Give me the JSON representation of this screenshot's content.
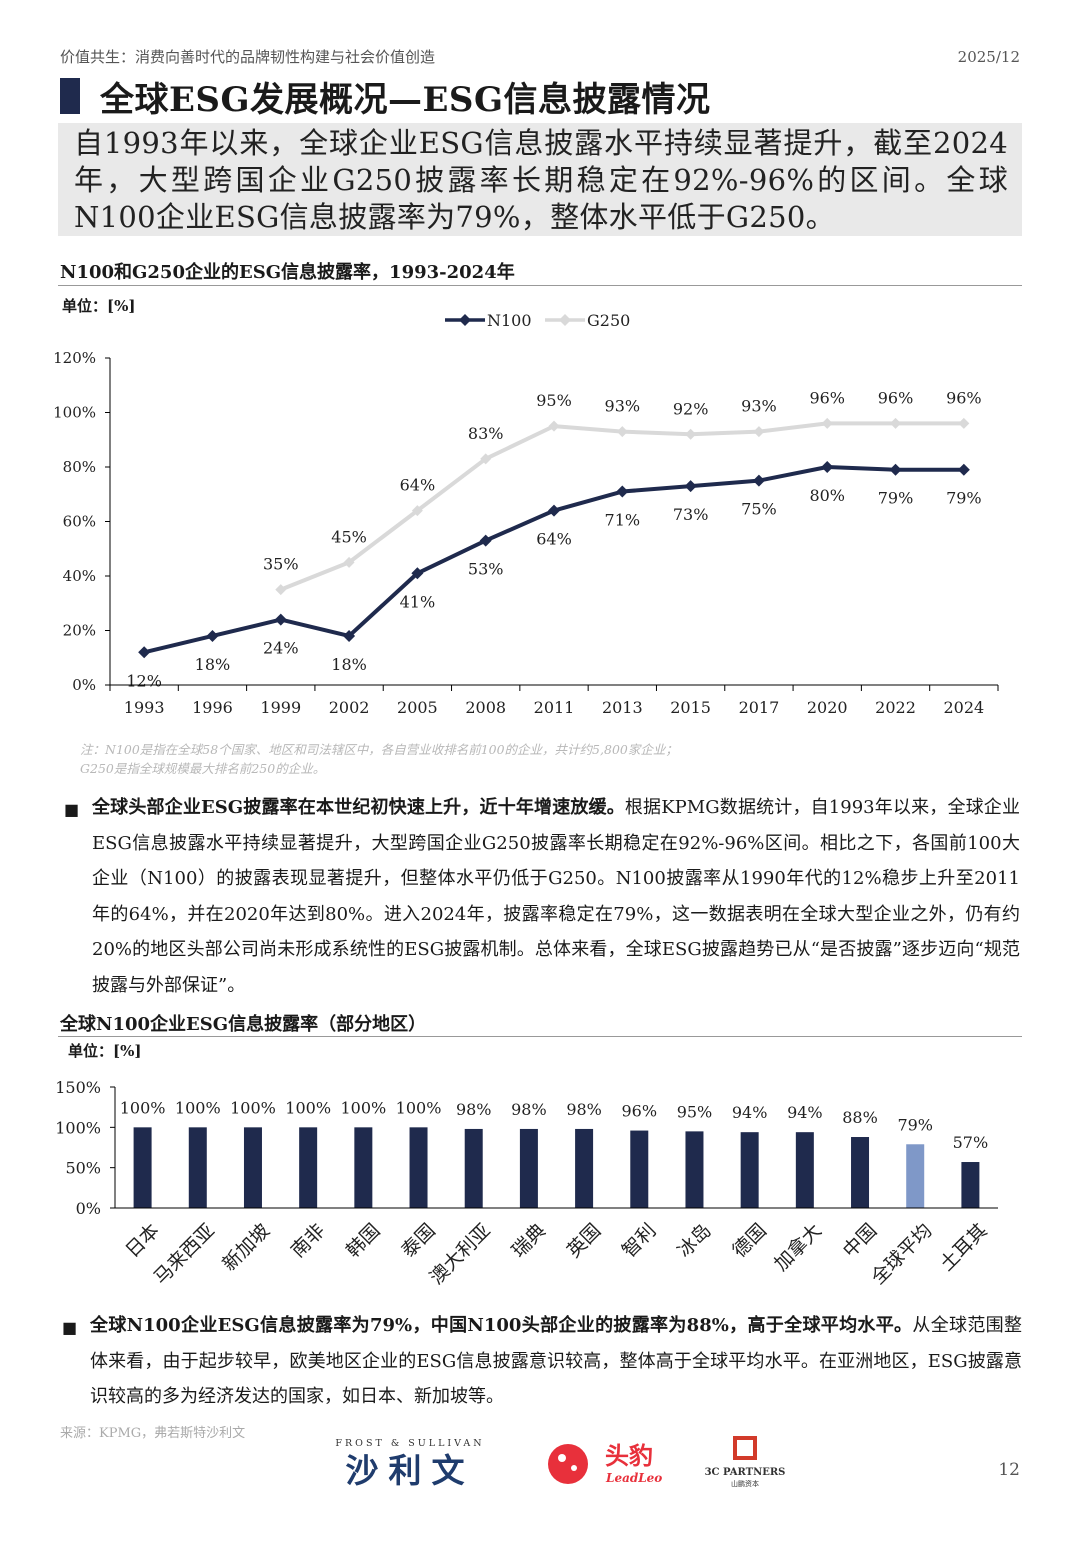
{
  "header": {
    "report_title": "价值共生：消费向善时代的品牌韧性构建与社会价值创造",
    "date": "2025/12"
  },
  "section_title": "全球ESG发展概况—ESG信息披露情况",
  "summary": "自1993年以来，全球企业ESG信息披露水平持续显著提升，截至2024年，大型跨国企业G250披露率长期稳定在92%-96%的区间。全球N100企业ESG信息披露率为79%，整体水平低于G250。",
  "chart1": {
    "title": "N100和G250企业的ESG信息披露率，1993-2024年",
    "unit": "单位：[%]"
  },
  "chart2": {
    "title": "全球N100企业ESG信息披露率（部分地区）",
    "unit": "单位：[%]"
  },
  "note": {
    "line1": "注：N100是指在全球58个国家、地区和司法辖区中，各自营业收排名前100的企业，共计约5,800家企业；",
    "line2": "G250是指全球规模最大排名前250的企业。"
  },
  "paragraph1": {
    "bold": "全球头部企业ESG披露率在本世纪初快速上升，近十年增速放缓。",
    "text": "根据KPMG数据统计，自1993年以来，全球企业ESG信息披露水平持续显著提升，大型跨国企业G250披露率长期稳定在92%-96%区间。相比之下，各国前100大企业（N100）的披露表现显著提升，但整体水平仍低于G250。N100披露率从1990年代的12%稳步上升至2011年的64%，并在2020年达到80%。进入2024年，披露率稳定在79%，这一数据表明在全球大型企业之外，仍有约20%的地区头部公司尚未形成系统性的ESG披露机制。总体来看，全球ESG披露趋势已从“是否披露”逐步迈向“规范披露与外部保证”。"
  },
  "paragraph2": {
    "bold": "全球N100企业ESG信息披露率为79%，中国N100头部企业的披露率为88%，高于全球平均水平。",
    "text": "从全球范围整体来看，由于起步较早，欧美地区企业的ESG信息披露意识较高，整体高于全球平均水平。在亚洲地区，ESG披露意识较高的多为经济发达的国家，如日本、新加坡等。"
  },
  "source": "来源：KPMG，弗若斯特沙利文",
  "page_number": "12",
  "logos": {
    "frost_top": "FROST & SULLIVAN",
    "frost_cn": "沙利文",
    "leadleo_cn": "头豹",
    "leadleo_en": "LeadLeo",
    "partners_en": "3C PARTNERS",
    "partners_cn": "山鹏资本"
  },
  "colors": {
    "navy": "#1f2a4d",
    "light_gray_line": "#d9d9d9",
    "global_avg_bar": "#7f98c8",
    "summary_bg": "#e9e9e9"
  },
  "chart_data": [
    {
      "type": "line",
      "title": "N100和G250企业的ESG信息披露率，1993-2024年",
      "x": [
        "1993",
        "1996",
        "1999",
        "2002",
        "2005",
        "2008",
        "2011",
        "2013",
        "2015",
        "2017",
        "2020",
        "2022",
        "2024"
      ],
      "series": [
        {
          "name": "N100",
          "values": [
            12,
            18,
            24,
            18,
            41,
            53,
            64,
            71,
            73,
            75,
            80,
            79,
            79
          ]
        },
        {
          "name": "G250",
          "values": [
            null,
            null,
            35,
            45,
            64,
            83,
            95,
            93,
            92,
            93,
            96,
            96,
            96
          ]
        }
      ],
      "y_ticks": [
        "0%",
        "20%",
        "40%",
        "60%",
        "80%",
        "100%",
        "120%"
      ],
      "ylim": [
        0,
        120
      ],
      "legend": "top-center"
    },
    {
      "type": "bar",
      "title": "全球N100企业ESG信息披露率（部分地区）",
      "categories": [
        "日本",
        "马来西亚",
        "新加坡",
        "南非",
        "韩国",
        "泰国",
        "澳大利亚",
        "瑞典",
        "英国",
        "智利",
        "冰岛",
        "德国",
        "加拿大",
        "中国",
        "全球平均",
        "土耳其"
      ],
      "values": [
        100,
        100,
        100,
        100,
        100,
        100,
        98,
        98,
        98,
        96,
        95,
        94,
        94,
        88,
        79,
        57
      ],
      "y_ticks": [
        "0%",
        "50%",
        "100%",
        "150%"
      ],
      "ylim": [
        0,
        150
      ],
      "highlight": "全球平均"
    }
  ]
}
